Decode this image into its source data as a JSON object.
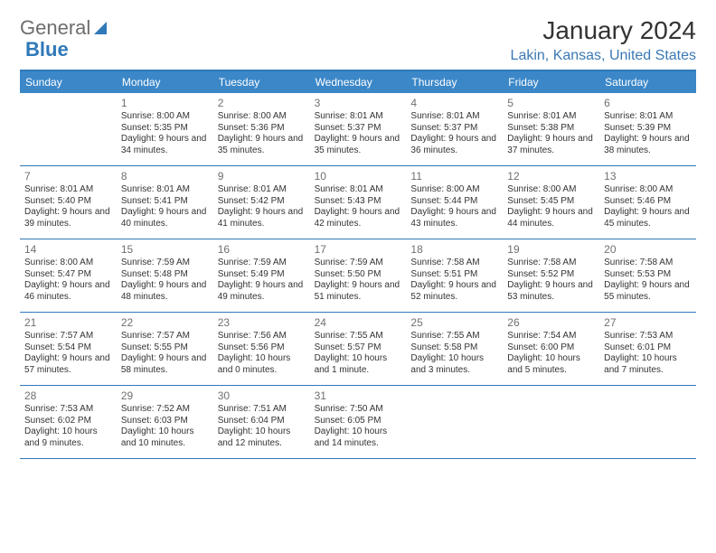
{
  "brand": {
    "part1": "General",
    "part2": "Blue"
  },
  "title": "January 2024",
  "location": "Lakin, Kansas, United States",
  "header_bg": "#3b87c8",
  "border_color": "#2f79b9",
  "daynames": [
    "Sunday",
    "Monday",
    "Tuesday",
    "Wednesday",
    "Thursday",
    "Friday",
    "Saturday"
  ],
  "weeks": [
    [
      {
        "day": "",
        "sunrise": "",
        "sunset": "",
        "daylight": ""
      },
      {
        "day": "1",
        "sunrise": "Sunrise: 8:00 AM",
        "sunset": "Sunset: 5:35 PM",
        "daylight": "Daylight: 9 hours and 34 minutes."
      },
      {
        "day": "2",
        "sunrise": "Sunrise: 8:00 AM",
        "sunset": "Sunset: 5:36 PM",
        "daylight": "Daylight: 9 hours and 35 minutes."
      },
      {
        "day": "3",
        "sunrise": "Sunrise: 8:01 AM",
        "sunset": "Sunset: 5:37 PM",
        "daylight": "Daylight: 9 hours and 35 minutes."
      },
      {
        "day": "4",
        "sunrise": "Sunrise: 8:01 AM",
        "sunset": "Sunset: 5:37 PM",
        "daylight": "Daylight: 9 hours and 36 minutes."
      },
      {
        "day": "5",
        "sunrise": "Sunrise: 8:01 AM",
        "sunset": "Sunset: 5:38 PM",
        "daylight": "Daylight: 9 hours and 37 minutes."
      },
      {
        "day": "6",
        "sunrise": "Sunrise: 8:01 AM",
        "sunset": "Sunset: 5:39 PM",
        "daylight": "Daylight: 9 hours and 38 minutes."
      }
    ],
    [
      {
        "day": "7",
        "sunrise": "Sunrise: 8:01 AM",
        "sunset": "Sunset: 5:40 PM",
        "daylight": "Daylight: 9 hours and 39 minutes."
      },
      {
        "day": "8",
        "sunrise": "Sunrise: 8:01 AM",
        "sunset": "Sunset: 5:41 PM",
        "daylight": "Daylight: 9 hours and 40 minutes."
      },
      {
        "day": "9",
        "sunrise": "Sunrise: 8:01 AM",
        "sunset": "Sunset: 5:42 PM",
        "daylight": "Daylight: 9 hours and 41 minutes."
      },
      {
        "day": "10",
        "sunrise": "Sunrise: 8:01 AM",
        "sunset": "Sunset: 5:43 PM",
        "daylight": "Daylight: 9 hours and 42 minutes."
      },
      {
        "day": "11",
        "sunrise": "Sunrise: 8:00 AM",
        "sunset": "Sunset: 5:44 PM",
        "daylight": "Daylight: 9 hours and 43 minutes."
      },
      {
        "day": "12",
        "sunrise": "Sunrise: 8:00 AM",
        "sunset": "Sunset: 5:45 PM",
        "daylight": "Daylight: 9 hours and 44 minutes."
      },
      {
        "day": "13",
        "sunrise": "Sunrise: 8:00 AM",
        "sunset": "Sunset: 5:46 PM",
        "daylight": "Daylight: 9 hours and 45 minutes."
      }
    ],
    [
      {
        "day": "14",
        "sunrise": "Sunrise: 8:00 AM",
        "sunset": "Sunset: 5:47 PM",
        "daylight": "Daylight: 9 hours and 46 minutes."
      },
      {
        "day": "15",
        "sunrise": "Sunrise: 7:59 AM",
        "sunset": "Sunset: 5:48 PM",
        "daylight": "Daylight: 9 hours and 48 minutes."
      },
      {
        "day": "16",
        "sunrise": "Sunrise: 7:59 AM",
        "sunset": "Sunset: 5:49 PM",
        "daylight": "Daylight: 9 hours and 49 minutes."
      },
      {
        "day": "17",
        "sunrise": "Sunrise: 7:59 AM",
        "sunset": "Sunset: 5:50 PM",
        "daylight": "Daylight: 9 hours and 51 minutes."
      },
      {
        "day": "18",
        "sunrise": "Sunrise: 7:58 AM",
        "sunset": "Sunset: 5:51 PM",
        "daylight": "Daylight: 9 hours and 52 minutes."
      },
      {
        "day": "19",
        "sunrise": "Sunrise: 7:58 AM",
        "sunset": "Sunset: 5:52 PM",
        "daylight": "Daylight: 9 hours and 53 minutes."
      },
      {
        "day": "20",
        "sunrise": "Sunrise: 7:58 AM",
        "sunset": "Sunset: 5:53 PM",
        "daylight": "Daylight: 9 hours and 55 minutes."
      }
    ],
    [
      {
        "day": "21",
        "sunrise": "Sunrise: 7:57 AM",
        "sunset": "Sunset: 5:54 PM",
        "daylight": "Daylight: 9 hours and 57 minutes."
      },
      {
        "day": "22",
        "sunrise": "Sunrise: 7:57 AM",
        "sunset": "Sunset: 5:55 PM",
        "daylight": "Daylight: 9 hours and 58 minutes."
      },
      {
        "day": "23",
        "sunrise": "Sunrise: 7:56 AM",
        "sunset": "Sunset: 5:56 PM",
        "daylight": "Daylight: 10 hours and 0 minutes."
      },
      {
        "day": "24",
        "sunrise": "Sunrise: 7:55 AM",
        "sunset": "Sunset: 5:57 PM",
        "daylight": "Daylight: 10 hours and 1 minute."
      },
      {
        "day": "25",
        "sunrise": "Sunrise: 7:55 AM",
        "sunset": "Sunset: 5:58 PM",
        "daylight": "Daylight: 10 hours and 3 minutes."
      },
      {
        "day": "26",
        "sunrise": "Sunrise: 7:54 AM",
        "sunset": "Sunset: 6:00 PM",
        "daylight": "Daylight: 10 hours and 5 minutes."
      },
      {
        "day": "27",
        "sunrise": "Sunrise: 7:53 AM",
        "sunset": "Sunset: 6:01 PM",
        "daylight": "Daylight: 10 hours and 7 minutes."
      }
    ],
    [
      {
        "day": "28",
        "sunrise": "Sunrise: 7:53 AM",
        "sunset": "Sunset: 6:02 PM",
        "daylight": "Daylight: 10 hours and 9 minutes."
      },
      {
        "day": "29",
        "sunrise": "Sunrise: 7:52 AM",
        "sunset": "Sunset: 6:03 PM",
        "daylight": "Daylight: 10 hours and 10 minutes."
      },
      {
        "day": "30",
        "sunrise": "Sunrise: 7:51 AM",
        "sunset": "Sunset: 6:04 PM",
        "daylight": "Daylight: 10 hours and 12 minutes."
      },
      {
        "day": "31",
        "sunrise": "Sunrise: 7:50 AM",
        "sunset": "Sunset: 6:05 PM",
        "daylight": "Daylight: 10 hours and 14 minutes."
      },
      {
        "day": "",
        "sunrise": "",
        "sunset": "",
        "daylight": ""
      },
      {
        "day": "",
        "sunrise": "",
        "sunset": "",
        "daylight": ""
      },
      {
        "day": "",
        "sunrise": "",
        "sunset": "",
        "daylight": ""
      }
    ]
  ]
}
